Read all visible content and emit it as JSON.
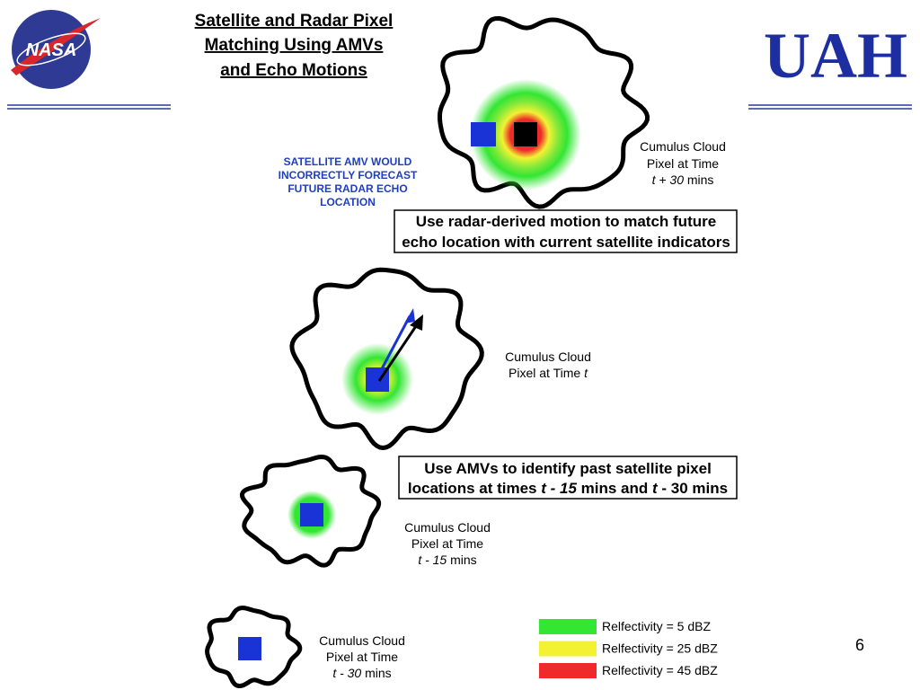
{
  "logos": {
    "left": "NASA",
    "right": "UAH"
  },
  "title": [
    "Satellite and Radar Pixel",
    "Matching Using AMVs",
    "and Echo Motions"
  ],
  "warning": [
    "SATELLITE AMV WOULD",
    "INCORRECTLY FORECAST",
    "FUTURE RADAR ECHO",
    "LOCATION"
  ],
  "boxes": [
    {
      "lines": [
        [
          {
            "text": "Use radar-derived motion to match future"
          }
        ],
        [
          {
            "text": "echo location with current satellite indicators"
          }
        ]
      ]
    },
    {
      "lines": [
        [
          {
            "text": "Use AMVs to identify past satellite pixel"
          }
        ],
        [
          {
            "text": "locations at times "
          },
          {
            "text": "t - 15",
            "italic": true
          },
          {
            "text": " mins and "
          },
          {
            "text": "t",
            "italic": true
          },
          {
            "text": " - 30 mins"
          }
        ]
      ]
    }
  ],
  "clouds": [
    {
      "lines": [
        [
          {
            "text": "Cumulus Cloud"
          }
        ],
        [
          {
            "text": "Pixel at Time"
          }
        ],
        [
          {
            "text": "t + 30",
            "italic": true
          },
          {
            "text": " mins"
          }
        ]
      ]
    },
    {
      "lines": [
        [
          {
            "text": "Cumulus Cloud"
          }
        ],
        [
          {
            "text": "Pixel at Time "
          },
          {
            "text": "t",
            "italic": true
          }
        ]
      ]
    },
    {
      "lines": [
        [
          {
            "text": "Cumulus Cloud"
          }
        ],
        [
          {
            "text": "Pixel at Time"
          }
        ],
        [
          {
            "text": "t - 15",
            "italic": true
          },
          {
            "text": " mins"
          }
        ]
      ]
    },
    {
      "lines": [
        [
          {
            "text": "Cumulus Cloud"
          }
        ],
        [
          {
            "text": "Pixel at Time"
          }
        ],
        [
          {
            "text": "t - 30",
            "italic": true
          },
          {
            "text": " mins"
          }
        ]
      ]
    }
  ],
  "legend": [
    {
      "label": "Relfectivity = 5 dBZ",
      "color": "#33e633"
    },
    {
      "label": "Relfectivity = 25 dBZ",
      "color": "#f2f233"
    },
    {
      "label": "Relfectivity = 45 dBZ",
      "color": "#ee2a2a"
    }
  ],
  "page_number": "6"
}
